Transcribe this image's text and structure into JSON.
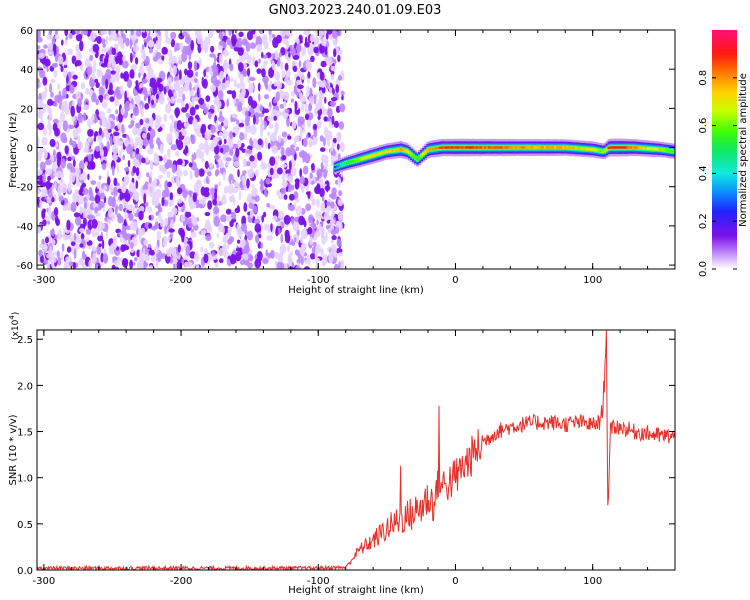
{
  "title": "GN03.2023.240.01.09.E03",
  "colorbar": {
    "label": "Normalized spectral amplitude",
    "ticks": [
      "0.0",
      "0.2",
      "0.4",
      "0.6",
      "0.8"
    ],
    "tick_values": [
      0.0,
      0.2,
      0.4,
      0.6,
      0.8
    ],
    "range": [
      0,
      1
    ],
    "colormap": "white-purple-blue-cyan-green-yellow-red-magenta"
  },
  "chart_data": [
    {
      "type": "heatmap",
      "title": "",
      "xlabel": "Height of straight line (km)",
      "ylabel": "Frequency (Hz)",
      "xlim": [
        -305,
        160
      ],
      "ylim": [
        -62,
        60
      ],
      "x_ticks": [
        "-300",
        "-200",
        "-100",
        "0",
        "100"
      ],
      "x_tick_values": [
        -300,
        -200,
        -100,
        0,
        100
      ],
      "y_ticks": [
        "-60",
        "-40",
        "-20",
        "0",
        "20",
        "40",
        "60"
      ],
      "y_tick_values": [
        -60,
        -40,
        -20,
        0,
        20,
        40,
        60
      ],
      "noise_region_x": [
        -305,
        -85
      ],
      "noise_color": "#7a10e8",
      "signal_ridge": {
        "x": [
          -88,
          -80,
          -70,
          -60,
          -50,
          -40,
          -35,
          -30,
          -28,
          -20,
          -10,
          0,
          20,
          50,
          80,
          100,
          108,
          112,
          120,
          130,
          150,
          160
        ],
        "freq": [
          -10,
          -8,
          -6,
          -4,
          -2,
          -1,
          -2,
          -5,
          -6,
          -1,
          0,
          0,
          0,
          0,
          0,
          -1,
          -2,
          0,
          0,
          0,
          -1,
          -2
        ],
        "amp": [
          0.25,
          0.45,
          0.65,
          0.75,
          0.7,
          0.8,
          0.7,
          0.55,
          0.5,
          0.8,
          0.85,
          0.9,
          0.85,
          0.8,
          0.75,
          0.7,
          0.6,
          0.9,
          0.95,
          0.8,
          0.6,
          0.55
        ]
      }
    },
    {
      "type": "line",
      "title": "",
      "xlabel": "Height of straight line (km)",
      "ylabel": "SNR (10 * v/v)",
      "y_multiplier": "(x10",
      "y_multiplier_exp": "4",
      "y_multiplier_close": ")",
      "xlim": [
        -305,
        160
      ],
      "ylim": [
        0,
        2.6
      ],
      "x_ticks": [
        "-300",
        "-200",
        "-100",
        "0",
        "100"
      ],
      "x_tick_values": [
        -300,
        -200,
        -100,
        0,
        100
      ],
      "y_ticks": [
        "0.0",
        "0.5",
        "1.0",
        "1.5",
        "2.0",
        "2.5"
      ],
      "y_tick_values": [
        0.0,
        0.5,
        1.0,
        1.5,
        2.0,
        2.5
      ],
      "line_color": "#e8302a",
      "series": [
        {
          "x": [
            -305,
            -250,
            -200,
            -150,
            -100,
            -80,
            -70,
            -60,
            -50,
            -40,
            -30,
            -25,
            -20,
            -15,
            -12,
            -10,
            -5,
            0,
            10,
            20,
            30,
            40,
            50,
            60,
            70,
            80,
            90,
            100,
            105,
            108,
            110,
            111,
            112,
            113,
            115,
            120,
            130,
            140,
            150,
            160
          ],
          "values": [
            0.02,
            0.02,
            0.02,
            0.02,
            0.02,
            0.03,
            0.22,
            0.32,
            0.45,
            0.55,
            0.62,
            0.68,
            0.78,
            0.72,
            1.05,
            0.9,
            0.95,
            1.0,
            1.2,
            1.38,
            1.5,
            1.55,
            1.58,
            1.6,
            1.6,
            1.58,
            1.6,
            1.57,
            1.6,
            1.8,
            2.6,
            0.7,
            1.0,
            1.5,
            1.55,
            1.55,
            1.5,
            1.48,
            1.45,
            1.45
          ],
          "spikes": [
            {
              "x": -40,
              "value": 1.13
            },
            {
              "x": -12,
              "value": 1.78
            },
            {
              "x": 110,
              "value": 2.6
            },
            {
              "x": 108,
              "value": 2.05
            },
            {
              "x": 111,
              "value": 0.7
            }
          ]
        }
      ]
    }
  ]
}
